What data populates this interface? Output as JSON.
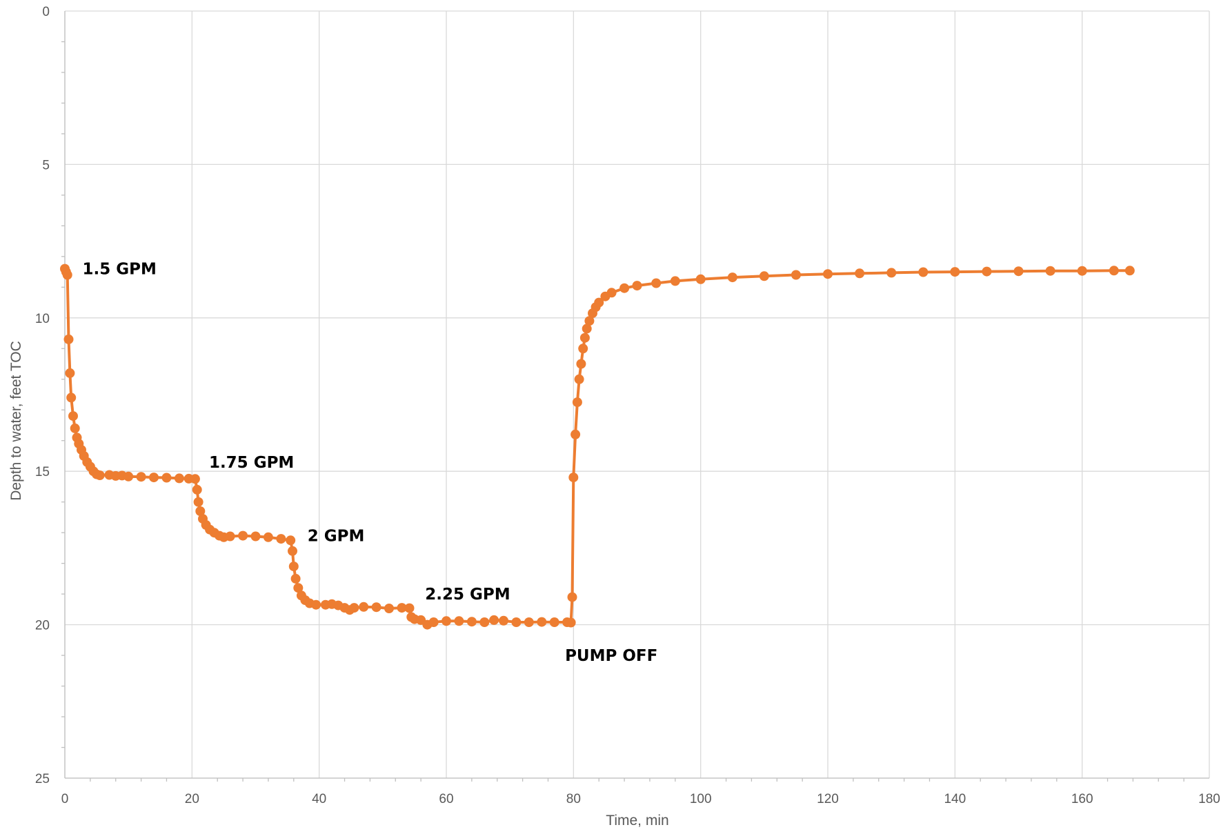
{
  "chart_data": {
    "type": "line",
    "title": "",
    "xlabel": "Time, min",
    "ylabel": "Depth to water, feet TOC",
    "xlim": [
      0,
      180
    ],
    "ylim": [
      0,
      25
    ],
    "y_inverted": true,
    "grid": true,
    "legend": "none",
    "x_ticks": [
      0,
      20,
      40,
      60,
      80,
      100,
      120,
      140,
      160,
      180
    ],
    "y_ticks": [
      0,
      5,
      10,
      15,
      20,
      25
    ],
    "series": [
      {
        "color": "#ed7d31",
        "marker": "circle",
        "points": [
          [
            0.0,
            8.4
          ],
          [
            0.2,
            8.5
          ],
          [
            0.4,
            8.6
          ],
          [
            0.6,
            10.7
          ],
          [
            0.8,
            11.8
          ],
          [
            1.0,
            12.6
          ],
          [
            1.3,
            13.2
          ],
          [
            1.6,
            13.6
          ],
          [
            1.9,
            13.9
          ],
          [
            2.2,
            14.1
          ],
          [
            2.6,
            14.3
          ],
          [
            3.0,
            14.5
          ],
          [
            3.5,
            14.7
          ],
          [
            4.0,
            14.85
          ],
          [
            4.5,
            15.0
          ],
          [
            5.0,
            15.1
          ],
          [
            5.5,
            15.13
          ],
          [
            7.0,
            15.12
          ],
          [
            8.0,
            15.15
          ],
          [
            9.0,
            15.14
          ],
          [
            10.0,
            15.17
          ],
          [
            12.0,
            15.18
          ],
          [
            14.0,
            15.2
          ],
          [
            16.0,
            15.21
          ],
          [
            18.0,
            15.23
          ],
          [
            19.5,
            15.24
          ],
          [
            20.5,
            15.25
          ],
          [
            20.8,
            15.6
          ],
          [
            21.0,
            16.0
          ],
          [
            21.3,
            16.3
          ],
          [
            21.7,
            16.55
          ],
          [
            22.2,
            16.75
          ],
          [
            22.8,
            16.9
          ],
          [
            23.5,
            17.0
          ],
          [
            24.3,
            17.1
          ],
          [
            25.0,
            17.15
          ],
          [
            26.0,
            17.12
          ],
          [
            28.0,
            17.1
          ],
          [
            30.0,
            17.12
          ],
          [
            32.0,
            17.15
          ],
          [
            34.0,
            17.2
          ],
          [
            35.5,
            17.25
          ],
          [
            35.8,
            17.6
          ],
          [
            36.0,
            18.1
          ],
          [
            36.3,
            18.5
          ],
          [
            36.7,
            18.8
          ],
          [
            37.2,
            19.05
          ],
          [
            37.8,
            19.2
          ],
          [
            38.5,
            19.3
          ],
          [
            39.5,
            19.35
          ],
          [
            41.0,
            19.35
          ],
          [
            42.0,
            19.33
          ],
          [
            43.0,
            19.37
          ],
          [
            44.0,
            19.45
          ],
          [
            44.8,
            19.52
          ],
          [
            45.5,
            19.45
          ],
          [
            47.0,
            19.42
          ],
          [
            49.0,
            19.43
          ],
          [
            51.0,
            19.47
          ],
          [
            53.0,
            19.45
          ],
          [
            54.2,
            19.46
          ],
          [
            54.5,
            19.75
          ],
          [
            55.0,
            19.82
          ],
          [
            56.0,
            19.85
          ],
          [
            57.0,
            20.0
          ],
          [
            58.0,
            19.92
          ],
          [
            60.0,
            19.88
          ],
          [
            62.0,
            19.88
          ],
          [
            64.0,
            19.9
          ],
          [
            66.0,
            19.92
          ],
          [
            67.5,
            19.85
          ],
          [
            69.0,
            19.87
          ],
          [
            71.0,
            19.92
          ],
          [
            73.0,
            19.92
          ],
          [
            75.0,
            19.91
          ],
          [
            77.0,
            19.92
          ],
          [
            79.0,
            19.92
          ],
          [
            79.6,
            19.93
          ],
          [
            79.8,
            19.1
          ],
          [
            80.0,
            15.2
          ],
          [
            80.3,
            13.8
          ],
          [
            80.6,
            12.75
          ],
          [
            80.9,
            12.0
          ],
          [
            81.2,
            11.5
          ],
          [
            81.5,
            11.0
          ],
          [
            81.8,
            10.65
          ],
          [
            82.1,
            10.35
          ],
          [
            82.5,
            10.1
          ],
          [
            83.0,
            9.85
          ],
          [
            83.5,
            9.65
          ],
          [
            84.0,
            9.5
          ],
          [
            85.0,
            9.3
          ],
          [
            86.0,
            9.18
          ],
          [
            88.0,
            9.03
          ],
          [
            90.0,
            8.95
          ],
          [
            93.0,
            8.87
          ],
          [
            96.0,
            8.8
          ],
          [
            100.0,
            8.74
          ],
          [
            105.0,
            8.68
          ],
          [
            110.0,
            8.64
          ],
          [
            115.0,
            8.6
          ],
          [
            120.0,
            8.57
          ],
          [
            125.0,
            8.55
          ],
          [
            130.0,
            8.53
          ],
          [
            135.0,
            8.51
          ],
          [
            140.0,
            8.5
          ],
          [
            145.0,
            8.49
          ],
          [
            150.0,
            8.48
          ],
          [
            155.0,
            8.47
          ],
          [
            160.0,
            8.47
          ],
          [
            165.0,
            8.46
          ],
          [
            167.5,
            8.46
          ]
        ]
      }
    ],
    "annotations": [
      {
        "text": "1.5 GPM",
        "x": 0.6,
        "y": 8.4
      },
      {
        "text": "1.75 GPM",
        "x": 20.5,
        "y": 14.7
      },
      {
        "text": "2 GPM",
        "x": 36.0,
        "y": 17.1
      },
      {
        "text": "2.25 GPM",
        "x": 54.5,
        "y": 19.0
      },
      {
        "text": "PUMP OFF",
        "x": 76.5,
        "y": 21.0
      }
    ]
  }
}
